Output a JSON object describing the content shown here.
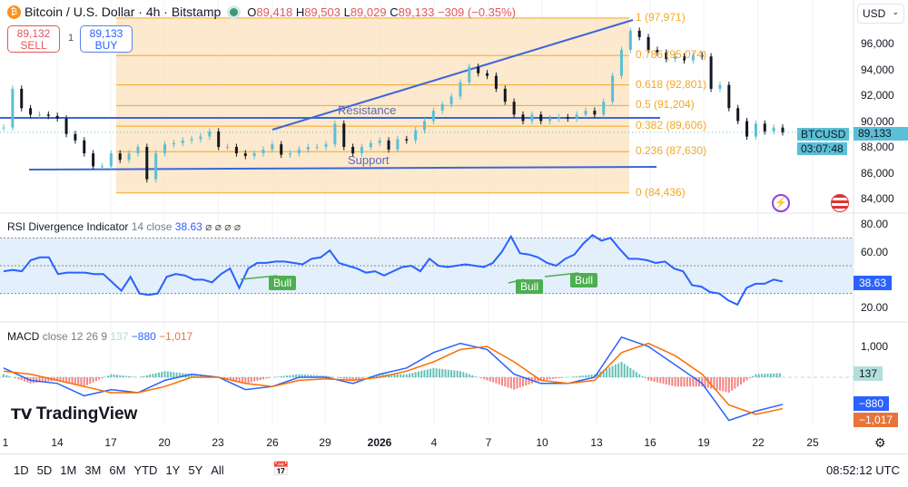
{
  "header": {
    "symbol_title": "Bitcoin / U.S. Dollar · 4h · Bitstamp",
    "open_label": "O",
    "open": "89,418",
    "high_label": "H",
    "high": "89,503",
    "low_label": "L",
    "low": "89,029",
    "close_label": "C",
    "close": "89,133",
    "change": "−309 (−0.35%)",
    "sell_price": "89,132",
    "sell_label": "SELL",
    "spread": "1",
    "buy_price": "89,133",
    "buy_label": "BUY",
    "currency": "USD"
  },
  "price_pane": {
    "axis_ticks": [
      "96,000",
      "94,000",
      "92,000",
      "90,000",
      "88,000",
      "86,000",
      "84,000"
    ],
    "symbol_tag": "BTCUSD",
    "last_price": "89,133",
    "countdown": "03:07:48",
    "fib_levels": [
      {
        "label": "1 (97,971)",
        "value": 97971
      },
      {
        "label": "0.786 (95,074)",
        "value": 95074
      },
      {
        "label": "0.618 (92,801)",
        "value": 92801
      },
      {
        "label": "0.5 (91,204)",
        "value": 91204
      },
      {
        "label": "0.382 (89,606)",
        "value": 89606
      },
      {
        "label": "0.236 (87,630)",
        "value": 87630
      },
      {
        "label": "0 (84,436)",
        "value": 84436
      }
    ],
    "resistance_label": "Resistance",
    "support_label": "Support",
    "colors": {
      "up": "#5bbfd6",
      "down": "#131722",
      "fib": "#f5a623",
      "fib_fill": "#fbe3c2",
      "trend": "#3d66d6"
    }
  },
  "rsi_pane": {
    "title": "RSI Divergence Indicator",
    "params": "14 close",
    "value": "38.63",
    "flags": "⌀ ⌀ ⌀ ⌀",
    "axis_ticks": [
      "80.00",
      "60.00",
      "20.00"
    ],
    "bull_labels": [
      "Bull",
      "Bull",
      "Bull"
    ],
    "color": "#2962ff",
    "bull_color": "#4caf50"
  },
  "macd_pane": {
    "title": "MACD",
    "params": "close 12 26 9",
    "hist_value": "137",
    "macd_value": "−880",
    "signal_value": "−1,017",
    "axis_ticks": [
      "1,000"
    ],
    "macd_color": "#2962ff",
    "signal_color": "#ff6d00"
  },
  "x_axis": {
    "ticks": [
      "1",
      "14",
      "17",
      "20",
      "23",
      "26",
      "29",
      "2026",
      "4",
      "7",
      "10",
      "13",
      "16",
      "19",
      "22",
      "25"
    ]
  },
  "footer": {
    "timeframes": [
      "1D",
      "5D",
      "1M",
      "3M",
      "6M",
      "YTD",
      "1Y",
      "5Y",
      "All"
    ],
    "clock": "08:52:12 UTC",
    "logo": "TradingView"
  },
  "chart_data": {
    "type": "candlestick",
    "ylim": [
      83500,
      99000
    ],
    "close": [
      89500,
      92500,
      91000,
      90500,
      90500,
      90400,
      90200,
      89000,
      88500,
      87500,
      86500,
      86500,
      87500,
      87000,
      87500,
      88000,
      85500,
      87500,
      88200,
      88300,
      88500,
      88600,
      88800,
      89200,
      88000,
      88000,
      87500,
      87300,
      87500,
      87800,
      88200,
      87400,
      87500,
      87800,
      88000,
      88000,
      88200,
      89800,
      88000,
      87500,
      88000,
      88300,
      88500,
      87800,
      88600,
      88500,
      89300,
      90000,
      90800,
      91300,
      91900,
      93000,
      94200,
      93700,
      93500,
      92500,
      91500,
      90500,
      90000,
      90500,
      90000,
      90200,
      90300,
      90200,
      90500,
      90800,
      90500,
      91500,
      93500,
      95500,
      97000,
      96500,
      95500,
      95300,
      94800,
      95000,
      94700,
      95100,
      95000,
      92500,
      92800,
      91000,
      90000,
      88800,
      89800,
      89200,
      89500,
      89133
    ],
    "rsi": {
      "ylim": [
        10,
        85
      ],
      "bands": [
        30,
        50,
        70
      ],
      "values": [
        46,
        47,
        46,
        54,
        56,
        56,
        44,
        45,
        45,
        45,
        44,
        44,
        38,
        32,
        42,
        30,
        29,
        30,
        42,
        44,
        43,
        40,
        40,
        38,
        44,
        48,
        34,
        48,
        52,
        52,
        53,
        53,
        52,
        51,
        55,
        56,
        61,
        52,
        50,
        48,
        45,
        46,
        43,
        46,
        49,
        50,
        46,
        55,
        50,
        49,
        50,
        51,
        50,
        49,
        52,
        60,
        71,
        59,
        58,
        56,
        52,
        50,
        55,
        58,
        66,
        72,
        68,
        70,
        62,
        55,
        55,
        54,
        52,
        53,
        48,
        46,
        36,
        35,
        31,
        30,
        25,
        22,
        34,
        37,
        37,
        40,
        38.63
      ]
    },
    "macd": {
      "ylim": [
        -1800,
        1500
      ],
      "macd": [
        300,
        -100,
        -200,
        -600,
        -400,
        -500,
        -100,
        100,
        0,
        -400,
        -300,
        0,
        0,
        -200,
        100,
        300,
        800,
        1100,
        900,
        100,
        -200,
        -200,
        0,
        1300,
        1000,
        400,
        -200,
        -1400,
        -1100,
        -880
      ],
      "signal": [
        200,
        100,
        -100,
        -300,
        -500,
        -500,
        -300,
        0,
        0,
        -200,
        -300,
        -100,
        -50,
        -100,
        0,
        200,
        500,
        900,
        1000,
        500,
        -100,
        -200,
        -100,
        800,
        1100,
        700,
        100,
        -900,
        -1200,
        -1017
      ]
    }
  }
}
